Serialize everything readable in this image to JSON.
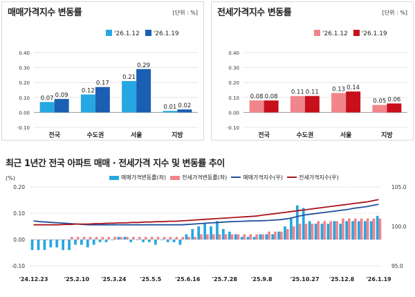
{
  "colors": {
    "sale_light": "#27a7e1",
    "sale_dark": "#1b5fb3",
    "jeonse_light": "#f0858b",
    "jeonse_dark": "#c7101b",
    "sale_index_line": "#1f4f9e",
    "jeonse_index_line": "#a8141c"
  },
  "panels": [
    {
      "title": "매매가격지수 변동률",
      "unit": "[단위 : %]",
      "chart_data": {
        "type": "bar",
        "categories": [
          "전국",
          "수도권",
          "서울",
          "지방"
        ],
        "series": [
          {
            "name": "'26.1.12",
            "values": [
              0.07,
              0.12,
              0.21,
              0.01
            ]
          },
          {
            "name": "'26.1.19",
            "values": [
              0.09,
              0.17,
              0.29,
              0.02
            ]
          }
        ],
        "ylim": [
          -0.1,
          0.4
        ],
        "yticks": [
          "0.40",
          "0.30",
          "0.20",
          "0.10",
          "0.00",
          "-0.10"
        ],
        "yticks_values": [
          0.4,
          0.3,
          0.2,
          0.1,
          0.0,
          -0.1
        ],
        "data_labels": [
          [
            "0.07",
            "0.12",
            "0.21",
            "0.01"
          ],
          [
            "0.09",
            "0.17",
            "0.29",
            "0.02"
          ]
        ]
      }
    },
    {
      "title": "전세가격지수 변동률",
      "unit": "[단위 : %]",
      "chart_data": {
        "type": "bar",
        "categories": [
          "전국",
          "수도권",
          "서울",
          "지방"
        ],
        "series": [
          {
            "name": "'26.1.12",
            "values": [
              0.08,
              0.11,
              0.13,
              0.05
            ]
          },
          {
            "name": "'26.1.19",
            "values": [
              0.08,
              0.11,
              0.14,
              0.06
            ]
          }
        ],
        "ylim": [
          -0.1,
          0.4
        ],
        "yticks": [
          "0.40",
          "0.30",
          "0.20",
          "0.10",
          "0.00",
          "-0.10"
        ],
        "yticks_values": [
          0.4,
          0.3,
          0.2,
          0.1,
          0.0,
          -0.1
        ],
        "data_labels": [
          [
            "0.08",
            "0.11",
            "0.13",
            "0.05"
          ],
          [
            "0.08",
            "0.11",
            "0.14",
            "0.06"
          ]
        ]
      }
    }
  ],
  "trend": {
    "title": "최근 1년간 전국 아파트 매매 · 전세가격 지수 및 변동률 추이",
    "left_unit": "(%)",
    "legend": [
      "매매가격변동률(좌)",
      "전세가격변동률(좌)",
      "매매가격지수(우)",
      "전세가격지수(우)"
    ],
    "chart_data": {
      "type": "bar",
      "ylim_left": [
        -0.1,
        0.2
      ],
      "ylim_right": [
        95.0,
        105.0
      ],
      "left_ticks": [
        "0.20",
        "0.10",
        "0.00",
        "-0.10"
      ],
      "left_ticks_values": [
        0.2,
        0.1,
        0.0,
        -0.1
      ],
      "right_ticks": [
        "105.0",
        "100.0",
        "95.0"
      ],
      "right_ticks_values": [
        105.0,
        100.0,
        95.0
      ],
      "x_labels": [
        "'24.12.23",
        "'25.2.10",
        "'25.3.24",
        "'25.5.5",
        "'25.6.16",
        "'25.7.28",
        "'25.9.8",
        "'25.10.27",
        "'25.12.8",
        "'26.1.19"
      ],
      "x_label_week_index": [
        0,
        7,
        13,
        19,
        25,
        31,
        37,
        44,
        50,
        56
      ],
      "series": [
        {
          "name": "매매가격변동률(좌)",
          "values": [
            -0.04,
            -0.04,
            -0.04,
            -0.03,
            -0.03,
            -0.04,
            -0.04,
            -0.02,
            -0.02,
            -0.03,
            -0.02,
            -0.01,
            -0.01,
            0.0,
            0.01,
            0.01,
            -0.01,
            0.0,
            -0.01,
            -0.01,
            -0.02,
            0.0,
            -0.01,
            -0.01,
            -0.02,
            0.02,
            0.04,
            0.05,
            0.06,
            0.05,
            0.07,
            0.04,
            0.03,
            0.02,
            0.01,
            0.01,
            0.01,
            0.02,
            0.02,
            0.02,
            0.03,
            0.05,
            0.08,
            0.13,
            0.12,
            0.07,
            0.06,
            0.06,
            0.06,
            0.07,
            0.06,
            0.07,
            0.07,
            0.07,
            0.07,
            0.07,
            0.09
          ]
        },
        {
          "name": "전세가격변동률(좌)",
          "values": [
            0.0,
            0.0,
            0.0,
            0.0,
            0.0,
            0.0,
            0.01,
            0.01,
            0.01,
            0.01,
            0.01,
            0.01,
            0.01,
            0.01,
            0.01,
            0.01,
            0.01,
            0.01,
            0.01,
            0.01,
            0.01,
            0.01,
            0.01,
            0.01,
            0.01,
            0.01,
            0.01,
            0.02,
            0.02,
            0.02,
            0.02,
            0.02,
            0.02,
            0.02,
            0.02,
            0.02,
            0.02,
            0.02,
            0.03,
            0.03,
            0.03,
            0.04,
            0.05,
            0.06,
            0.06,
            0.06,
            0.07,
            0.07,
            0.07,
            0.07,
            0.08,
            0.08,
            0.08,
            0.08,
            0.08,
            0.08,
            0.08
          ]
        },
        {
          "name": "매매가격지수(우)",
          "values": [
            100.7,
            100.6,
            100.55,
            100.5,
            100.45,
            100.4,
            100.35,
            100.3,
            100.25,
            100.2,
            100.2,
            100.2,
            100.2,
            100.2,
            100.2,
            100.2,
            100.2,
            100.2,
            100.2,
            100.2,
            100.2,
            100.2,
            100.2,
            100.2,
            100.2,
            100.25,
            100.3,
            100.35,
            100.4,
            100.45,
            100.5,
            100.55,
            100.6,
            100.62,
            100.65,
            100.68,
            100.7,
            100.72,
            100.75,
            100.8,
            100.85,
            100.95,
            101.1,
            101.3,
            101.45,
            101.55,
            101.65,
            101.75,
            101.85,
            101.95,
            102.05,
            102.15,
            102.3,
            102.4,
            102.5,
            102.65,
            102.8
          ]
        },
        {
          "name": "전세가격지수(우)",
          "values": [
            100.2,
            100.2,
            100.2,
            100.2,
            100.2,
            100.25,
            100.25,
            100.3,
            100.3,
            100.3,
            100.35,
            100.35,
            100.4,
            100.4,
            100.45,
            100.45,
            100.5,
            100.5,
            100.55,
            100.55,
            100.6,
            100.6,
            100.65,
            100.65,
            100.7,
            100.75,
            100.8,
            100.85,
            100.9,
            100.95,
            101.0,
            101.05,
            101.1,
            101.15,
            101.2,
            101.25,
            101.3,
            101.4,
            101.5,
            101.6,
            101.7,
            101.8,
            101.9,
            102.0,
            102.1,
            102.2,
            102.3,
            102.4,
            102.5,
            102.6,
            102.7,
            102.8,
            102.9,
            103.0,
            103.1,
            103.25,
            103.4
          ]
        }
      ]
    }
  }
}
